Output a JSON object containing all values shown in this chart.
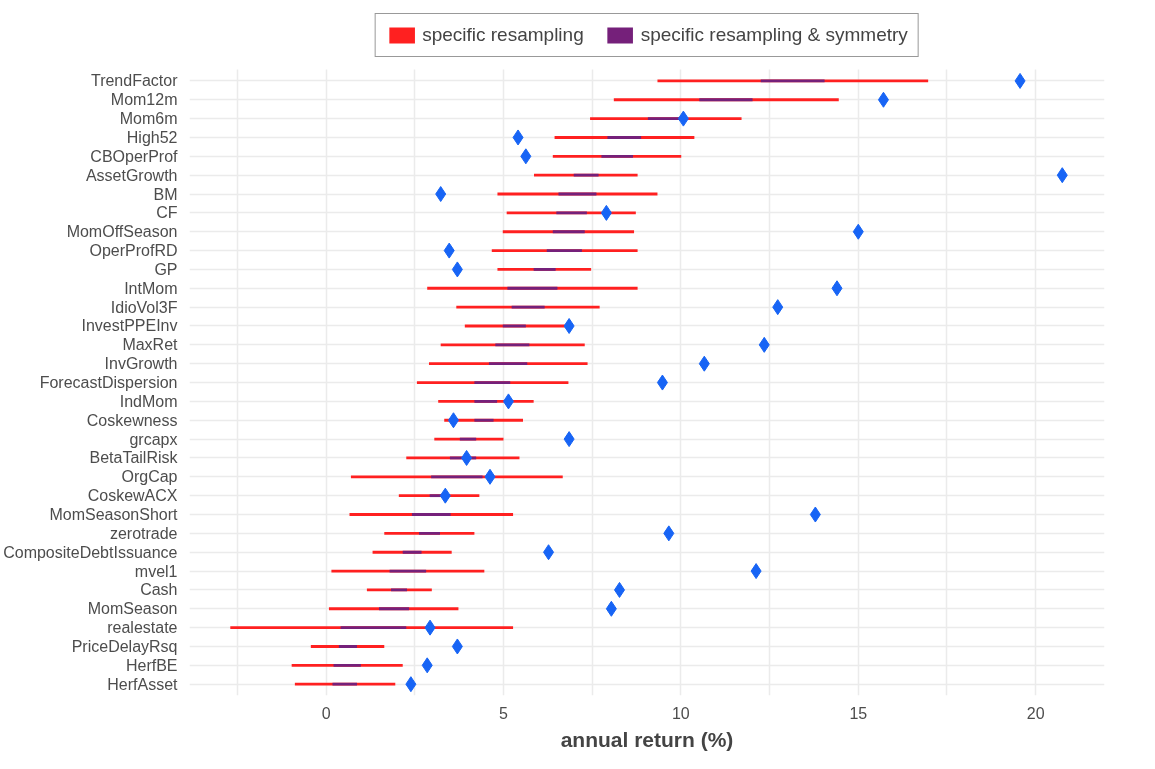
{
  "chart_data": {
    "type": "bar",
    "orientation": "horizontal",
    "xlabel": "annual return (%)",
    "categories": [
      "TrendFactor",
      "Mom12m",
      "Mom6m",
      "High52",
      "CBOperProf",
      "AssetGrowth",
      "BM",
      "CF",
      "MomOffSeason",
      "OperProfRD",
      "GP",
      "IntMom",
      "IdioVol3F",
      "InvestPPEInv",
      "MaxRet",
      "InvGrowth",
      "ForecastDispersion",
      "IndMom",
      "Coskewness",
      "grcapx",
      "BetaTailRisk",
      "OrgCap",
      "CoskewACX",
      "MomSeasonShort",
      "zerotrade",
      "CompositeDebtIssuance",
      "mvel1",
      "Cash",
      "MomSeason",
      "realestate",
      "PriceDelayRsq",
      "HerfBE",
      "HerfAsset"
    ],
    "series": [
      {
        "name": "specific resampling",
        "color": "#ff2020",
        "base": [
          9.34,
          8.11,
          7.44,
          6.44,
          6.39,
          5.86,
          4.83,
          5.09,
          4.98,
          4.67,
          4.83,
          2.85,
          3.67,
          3.91,
          3.23,
          2.9,
          2.56,
          3.16,
          3.33,
          3.05,
          2.26,
          0.7,
          2.05,
          0.66,
          1.64,
          1.31,
          0.15,
          1.15,
          0.08,
          -2.7,
          -0.43,
          -0.97,
          -0.88
        ],
        "values": [
          7.63,
          6.34,
          4.27,
          3.94,
          3.62,
          2.92,
          4.51,
          3.64,
          3.7,
          4.11,
          2.64,
          5.93,
          4.04,
          2.84,
          4.06,
          4.47,
          4.27,
          2.69,
          2.22,
          1.95,
          3.19,
          5.97,
          2.27,
          4.61,
          2.54,
          2.23,
          4.31,
          1.83,
          3.65,
          7.97,
          2.07,
          3.13,
          2.83
        ]
      },
      {
        "name": "specific resampling & symmetry",
        "color": "#75207a",
        "base": [
          12.25,
          10.52,
          9.07,
          7.93,
          7.76,
          6.98,
          6.55,
          6.49,
          6.39,
          6.22,
          5.85,
          5.11,
          5.23,
          4.98,
          4.77,
          4.59,
          4.18,
          4.18,
          4.18,
          3.77,
          3.49,
          2.96,
          2.92,
          2.42,
          2.62,
          2.16,
          1.79,
          1.83,
          1.49,
          0.41,
          0.36,
          0.21,
          0.18
        ],
        "values": [
          1.8,
          1.5,
          0.93,
          0.95,
          0.89,
          0.7,
          1.07,
          0.86,
          0.9,
          0.99,
          0.62,
          1.41,
          0.93,
          0.65,
          0.96,
          1.08,
          1.01,
          0.64,
          0.54,
          0.46,
          0.74,
          1.45,
          0.39,
          1.09,
          0.59,
          0.53,
          1.03,
          0.45,
          0.85,
          1.85,
          0.51,
          0.77,
          0.69
        ]
      },
      {
        "type": "scatter",
        "marker": "diamond",
        "color": "#1764f5",
        "values": [
          19.56,
          15.71,
          10.07,
          5.41,
          5.63,
          20.75,
          3.23,
          7.9,
          15.0,
          3.47,
          3.7,
          14.4,
          12.73,
          6.85,
          12.35,
          10.66,
          9.48,
          5.14,
          3.59,
          6.85,
          3.96,
          4.62,
          3.36,
          13.79,
          9.66,
          6.27,
          12.12,
          8.27,
          8.04,
          2.93,
          3.7,
          2.85,
          2.39
        ]
      }
    ],
    "xlim": [
      -3.85,
      21.94
    ],
    "xticks": [
      {
        "value": -2.5,
        "label": null
      },
      0,
      {
        "value": 2.5,
        "label": null
      },
      5,
      {
        "value": 7.5,
        "label": null
      },
      10,
      {
        "value": 12.5,
        "label": null
      },
      15,
      {
        "value": 17.5,
        "label": null
      },
      20
    ],
    "grid": true,
    "legend": "top"
  }
}
